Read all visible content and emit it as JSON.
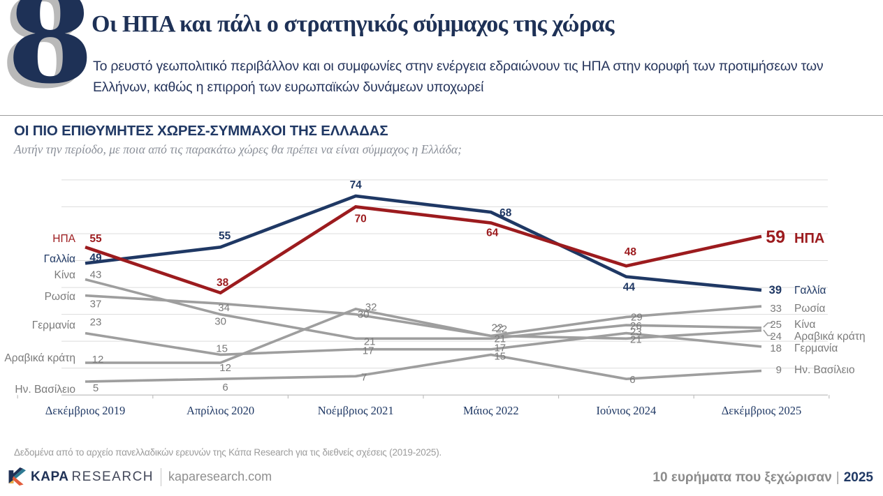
{
  "header": {
    "number": "8",
    "title": "Οι ΗΠΑ και πάλι ο στρατηγικός σύμμαχος της χώρας",
    "subtitle": "Το ρευστό γεωπολιτικό περιβάλλον και οι συμφωνίες στην ενέργεια εδραιώνουν τις ΗΠΑ στην κορυφή των προτιμήσεων των Ελλήνων, καθώς η επιρροή των ευρωπαϊκών δυνάμεων υποχωρεί"
  },
  "section": {
    "heading": "ΟΙ ΠΙΟ ΕΠΙΘΥΜΗΤΕΣ ΧΩΡΕΣ-ΣΥΜΜΑΧΟΙ ΤΗΣ ΕΛΛΑΔΑΣ",
    "question": "Αυτήν την περίοδο, με ποια από τις παρακάτω χώρες θα πρέπει να είναι σύμμαχος η Ελλάδα;"
  },
  "chart_data": {
    "type": "line",
    "categories": [
      "Δεκέμβριος 2019",
      "Απρίλιος 2020",
      "Νοέμβριος 2021",
      "Μάιος 2022",
      "Ιούνιος 2024",
      "Δεκέμβριος 2025"
    ],
    "series": [
      {
        "name": "Κίνα",
        "color": "#9e9e9e",
        "label_color": "#7a7a7a",
        "emphasis": false,
        "values": [
          43,
          30,
          21,
          21,
          26,
          25
        ]
      },
      {
        "name": "Ρωσία",
        "color": "#9e9e9e",
        "label_color": "#7a7a7a",
        "emphasis": false,
        "values": [
          37,
          34,
          30,
          22,
          29,
          33
        ]
      },
      {
        "name": "Γερμανία",
        "color": "#9e9e9e",
        "label_color": "#7a7a7a",
        "emphasis": false,
        "values": [
          23,
          15,
          17,
          17,
          23,
          18
        ]
      },
      {
        "name": "Αραβικά κράτη",
        "color": "#9e9e9e",
        "label_color": "#7a7a7a",
        "emphasis": false,
        "values": [
          12,
          12,
          32,
          22,
          21,
          24
        ]
      },
      {
        "name": "Ην. Βασίλειο",
        "color": "#9e9e9e",
        "label_color": "#7a7a7a",
        "emphasis": false,
        "values": [
          5,
          6,
          7,
          15,
          6,
          9
        ]
      },
      {
        "name": "Γαλλία",
        "color": "#1f3864",
        "label_color": "#1f3864",
        "emphasis": "navy",
        "values": [
          49,
          55,
          74,
          68,
          44,
          39
        ]
      },
      {
        "name": "ΗΠΑ",
        "color": "#9c1b1e",
        "label_color": "#9c1b1e",
        "emphasis": "red",
        "values": [
          55,
          38,
          70,
          64,
          48,
          59
        ]
      }
    ],
    "ylim": [
      0,
      80
    ],
    "grid": true,
    "grid_step": 10,
    "legend_position": "line-ends"
  },
  "source_note": "Δεδομένα από το αρχείο πανελλαδικών ερευνών της Κάπα Research  για τις διεθνείς σχέσεις (2019-2025).",
  "footer": {
    "brand_kapa": "KAPA",
    "brand_research": "RESEARCH",
    "website": "kaparesearch.com",
    "tagline": "10 ευρήματα που ξεχώρισαν",
    "year": "2025"
  },
  "colors": {
    "navy": "#1f3864",
    "red": "#9c1b1e",
    "gray_line": "#9e9e9e",
    "gray_label": "#7a7a7a",
    "gridline": "#dcdcdc",
    "axis": "#bfbfbf"
  }
}
